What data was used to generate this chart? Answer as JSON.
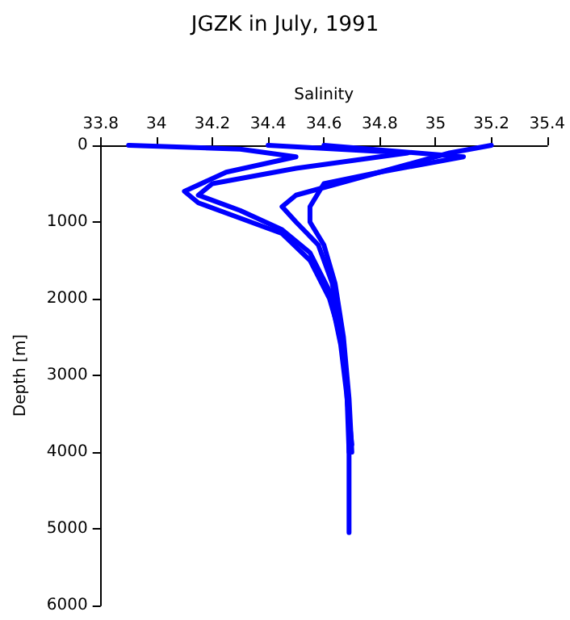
{
  "chart_data": {
    "type": "line",
    "title": "JGZK in July, 1991",
    "xlabel": "Salinity",
    "ylabel": "Depth [m]",
    "xlim": [
      33.8,
      35.4
    ],
    "xticks": [
      33.8,
      34,
      34.2,
      34.4,
      34.6,
      34.8,
      35,
      35.2,
      35.4
    ],
    "ylim": [
      6000,
      0
    ],
    "yticks": [
      0,
      1000,
      2000,
      3000,
      4000,
      5000,
      6000
    ],
    "grid": false,
    "marker": "none",
    "line_style": "solid",
    "series": [
      {
        "color": "#0000ff",
        "x": [
          33.9,
          34.3,
          34.5,
          34.25,
          34.1,
          34.15,
          34.3,
          34.45,
          34.55,
          34.62,
          34.66,
          34.68,
          34.69,
          34.69
        ],
        "values": [
          0,
          50,
          150,
          350,
          600,
          750,
          950,
          1150,
          1500,
          2000,
          2500,
          3000,
          3500,
          4000
        ]
      },
      {
        "color": "#0000ff",
        "x": [
          35.2,
          35.05,
          34.9,
          34.7,
          34.5,
          34.45,
          34.5,
          34.58,
          34.63,
          34.66,
          34.68,
          34.69,
          34.69
        ],
        "values": [
          0,
          100,
          250,
          450,
          650,
          800,
          1000,
          1300,
          1800,
          2500,
          3000,
          4000,
          5050
        ]
      },
      {
        "color": "#0000ff",
        "x": [
          34.6,
          35.1,
          34.8,
          34.6,
          34.55,
          34.55,
          34.6,
          34.64,
          34.67,
          34.69,
          34.7
        ],
        "values": [
          0,
          150,
          350,
          500,
          800,
          1000,
          1300,
          1800,
          2500,
          3300,
          4000
        ]
      },
      {
        "color": "#0000ff",
        "x": [
          34.4,
          34.9,
          34.5,
          34.2,
          34.15,
          34.3,
          34.45,
          34.55,
          34.62,
          34.66,
          34.68,
          34.7
        ],
        "values": [
          0,
          100,
          300,
          500,
          650,
          850,
          1100,
          1400,
          1900,
          2600,
          3200,
          3900
        ]
      }
    ]
  }
}
